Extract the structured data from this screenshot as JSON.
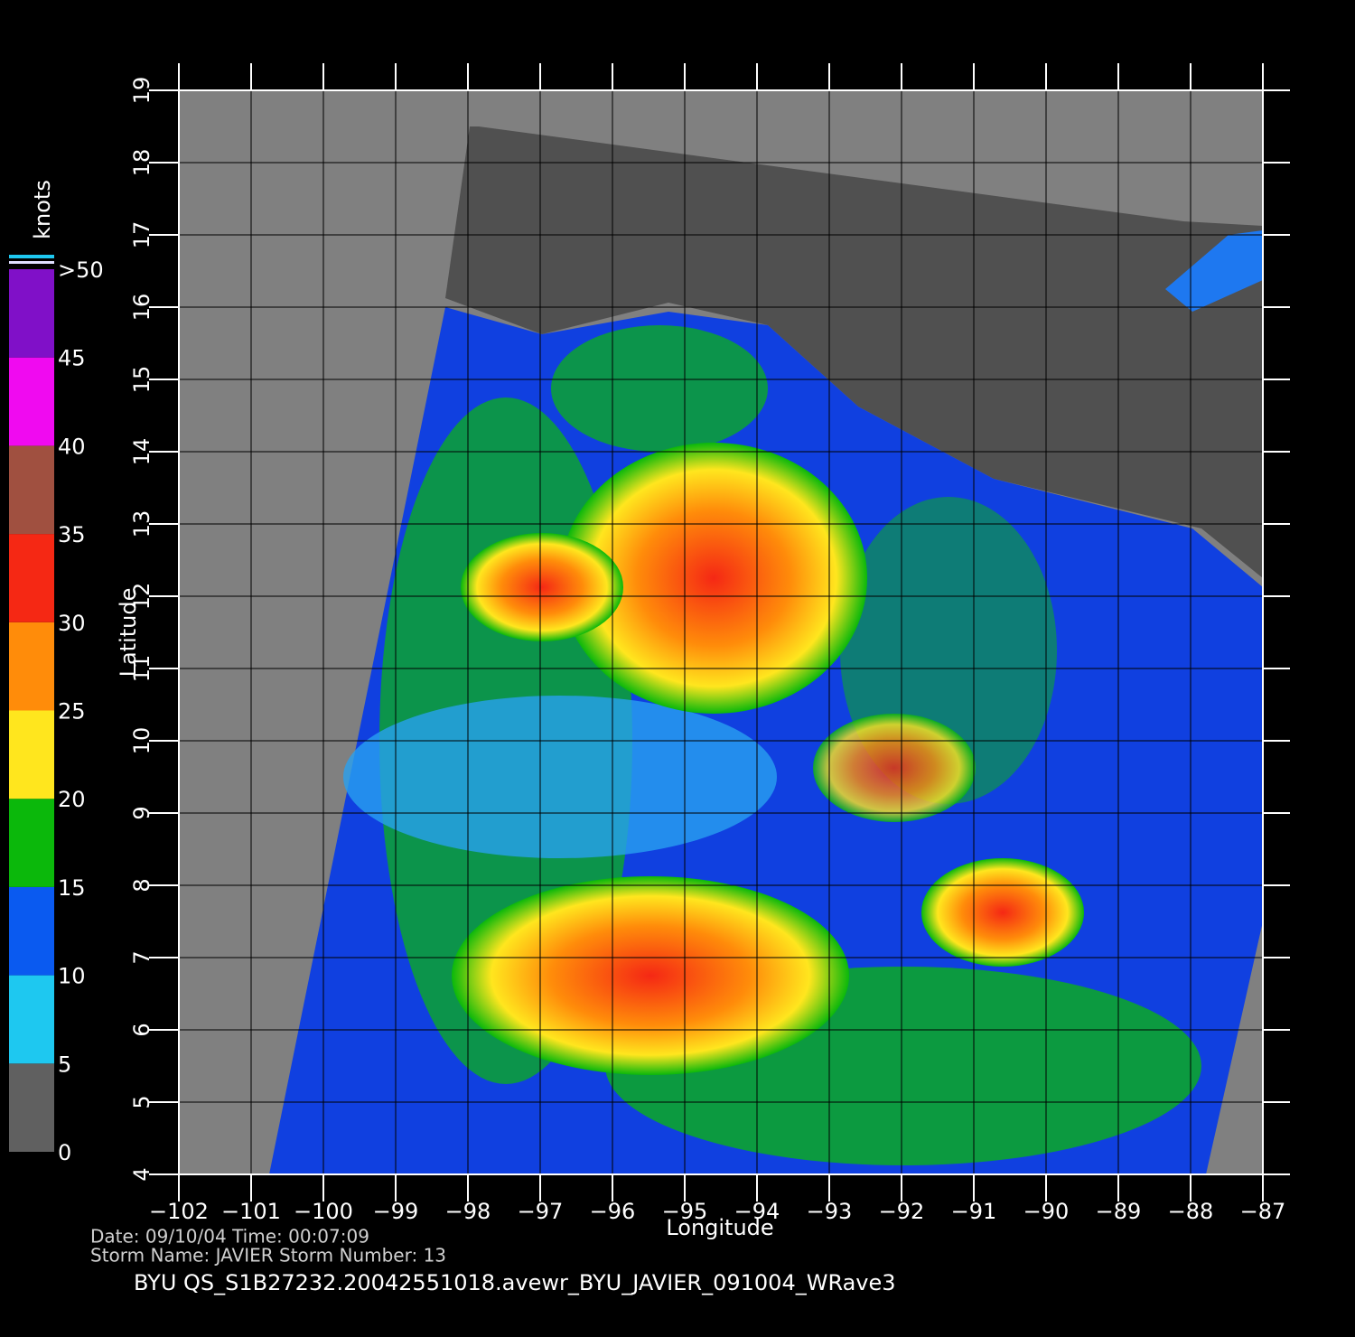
{
  "chart_data": {
    "type": "wind-map",
    "xlabel": "Longitude",
    "ylabel": "Latitude",
    "xlim": [
      -102,
      -87
    ],
    "ylim": [
      4,
      19
    ],
    "xticks": [
      {
        "value": -102,
        "label": "−102"
      },
      {
        "value": -101,
        "label": "−101"
      },
      {
        "value": -100,
        "label": "−100"
      },
      {
        "value": -99,
        "label": "−99"
      },
      {
        "value": -98,
        "label": "−98"
      },
      {
        "value": -97,
        "label": "−97"
      },
      {
        "value": -96,
        "label": "−96"
      },
      {
        "value": -95,
        "label": "−95"
      },
      {
        "value": -94,
        "label": "−94"
      },
      {
        "value": -93,
        "label": "−93"
      },
      {
        "value": -92,
        "label": "−92"
      },
      {
        "value": -91,
        "label": "−91"
      },
      {
        "value": -90,
        "label": "−90"
      },
      {
        "value": -89,
        "label": "−89"
      },
      {
        "value": -88,
        "label": "−88"
      },
      {
        "value": -87,
        "label": "−87"
      }
    ],
    "yticks": [
      4,
      5,
      6,
      7,
      8,
      9,
      10,
      11,
      12,
      13,
      14,
      15,
      16,
      17,
      18,
      19
    ],
    "grid": true,
    "colorbar": {
      "label": "knots",
      "lim": [
        0,
        50
      ],
      "ticks": [
        0,
        5,
        10,
        15,
        20,
        25,
        30,
        35,
        40,
        {
          "value": 45,
          "label": "45"
        },
        {
          "value": 50,
          "label": ">50"
        }
      ],
      "colors": [
        "#606060",
        "#1ec8f0",
        "#0a5af0",
        "#0bb80b",
        "#ffe61e",
        "#ff8c0a",
        "#f52814",
        "#a05040",
        "#f00af0",
        "#8010c8"
      ]
    },
    "info": [
      "Date: 09/10/04   Time: 00:07:09",
      "Storm  Name: JAVIER   Storm  Number: 13"
    ],
    "footer": "BYU  QS_S1B27232.20042551018.avewr_BYU_JAVIER_091004_WRave3"
  }
}
